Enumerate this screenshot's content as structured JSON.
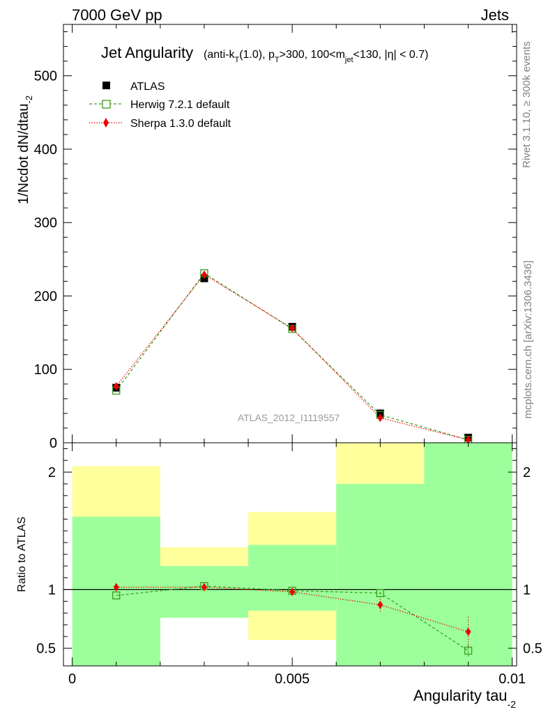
{
  "header": {
    "left": "7000 GeV pp",
    "right": "Jets"
  },
  "side_labels": {
    "rivet": "Rivet 3.1.10, ≥ 300k events",
    "mcplots": "mcplots.cern.ch [arXiv:1306.3436]"
  },
  "watermark": "ATLAS_2012_I1119557",
  "title": {
    "main": "Jet Angularity",
    "sub": "(anti-k_T(1.0), p_T>300, 100<m_jet<130, |η| < 0.7)"
  },
  "axes": {
    "main_ylabel": "1/Ncdot dN/dtau_-2",
    "ratio_ylabel": "Ratio to ATLAS",
    "xlabel": "Angularity tau_-2"
  },
  "chart_data": {
    "type": "line",
    "x": [
      0.001,
      0.003,
      0.005,
      0.007,
      0.009
    ],
    "xlim": [
      -0.0002,
      0.0101
    ],
    "xticks": [
      {
        "value": 0,
        "label": "0"
      },
      {
        "value": 0.005,
        "label": "0.005"
      },
      {
        "value": 0.01,
        "label": "0.01"
      }
    ],
    "main": {
      "ylim": [
        0,
        570
      ],
      "yticks": [
        {
          "value": 0,
          "label": "0"
        },
        {
          "value": 100,
          "label": "100"
        },
        {
          "value": 200,
          "label": "200"
        },
        {
          "value": 300,
          "label": "300"
        },
        {
          "value": 400,
          "label": "400"
        },
        {
          "value": 500,
          "label": "500"
        }
      ],
      "series": [
        {
          "name": "ATLAS",
          "color": "#000000",
          "marker": "square-filled",
          "values": [
            75,
            224,
            158,
            40,
            7
          ]
        },
        {
          "name": "Herwig 7.2.1 default",
          "color": "#3a9a1a",
          "marker": "square-open",
          "line": "dashed",
          "values": [
            71,
            231,
            155,
            38,
            4
          ]
        },
        {
          "name": "Sherpa 1.3.0 default",
          "color": "#ee0000",
          "marker": "diamond",
          "line": "dotted",
          "values": [
            77,
            229,
            156,
            34,
            4
          ]
        }
      ]
    },
    "ratio": {
      "ylim": [
        0.35,
        2.25
      ],
      "yticks": [
        {
          "value": 0.5,
          "label": "0.5"
        },
        {
          "value": 1,
          "label": "1"
        },
        {
          "value": 2,
          "label": "2"
        }
      ],
      "bands": [
        {
          "x0": 0.0,
          "x1": 0.002,
          "inner": [
            0.35,
            1.62
          ],
          "outer": [
            0.35,
            2.05
          ]
        },
        {
          "x0": 0.002,
          "x1": 0.004,
          "inner": [
            0.76,
            1.2
          ],
          "outer": [
            0.76,
            1.36
          ]
        },
        {
          "x0": 0.004,
          "x1": 0.006,
          "inner": [
            0.82,
            1.38
          ],
          "outer": [
            0.57,
            1.66
          ]
        },
        {
          "x0": 0.006,
          "x1": 0.008,
          "inner": [
            0.35,
            1.9
          ],
          "outer": [
            0.35,
            2.25
          ]
        },
        {
          "x0": 0.008,
          "x1": 0.01,
          "inner": [
            0.35,
            2.25
          ],
          "outer": [
            0.35,
            2.25
          ]
        }
      ],
      "series": [
        {
          "name": "Herwig 7.2.1 default",
          "values": [
            0.95,
            1.03,
            0.99,
            0.97,
            0.48
          ],
          "err": [
            0.0,
            0.01,
            0.01,
            0.01,
            0.05
          ]
        },
        {
          "name": "Sherpa 1.3.0 default",
          "values": [
            1.02,
            1.02,
            0.98,
            0.87,
            0.64
          ],
          "err": [
            0.04,
            0.01,
            0.01,
            0.06,
            0.13
          ]
        }
      ]
    },
    "colors": {
      "band_inner": "#9cff9c",
      "band_outer": "#ffff9c",
      "herwig": "#3a9a1a",
      "sherpa": "#ee0000",
      "atlas": "#000000",
      "side_text": "#808080",
      "watermark": "#9a9a9a"
    }
  }
}
